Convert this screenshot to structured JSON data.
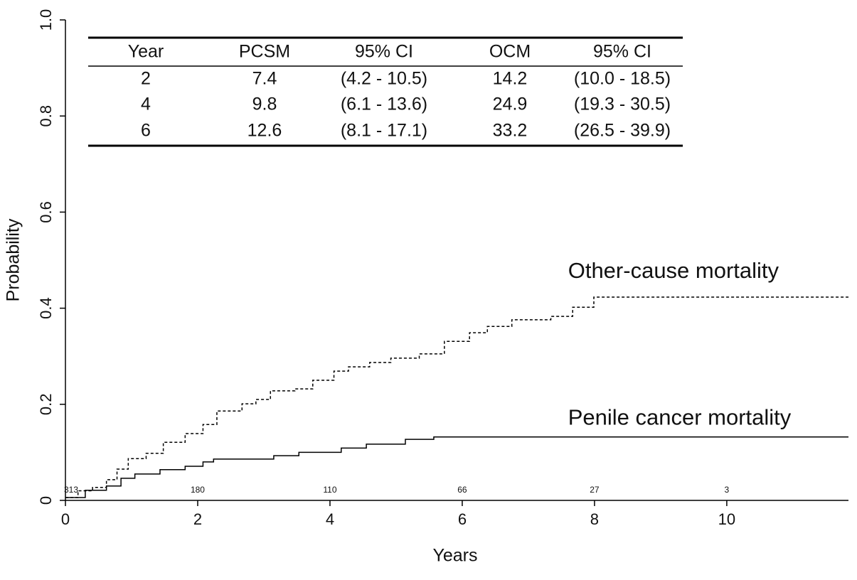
{
  "chart_data": {
    "type": "step",
    "xlabel": "Years",
    "ylabel": "Probability",
    "xlim": [
      0,
      11.84
    ],
    "ylim": [
      0,
      1
    ],
    "xticks": [
      0,
      2,
      4,
      6,
      8,
      10
    ],
    "yticks": [
      0,
      0.2,
      0.4,
      0.6,
      0.8,
      {
        "value": 1,
        "label": "1.0"
      }
    ],
    "series": [
      {
        "name": "Other-cause mortality",
        "color": "#000000",
        "line_style": "dashed",
        "x": [
          0.03,
          0.19,
          0.41,
          0.62,
          0.78,
          0.95,
          1.22,
          1.48,
          1.81,
          2.08,
          2.29,
          2.67,
          2.88,
          3.1,
          3.47,
          3.74,
          4.06,
          4.28,
          4.6,
          4.92,
          5.35,
          5.73,
          6.11,
          6.38,
          6.75,
          7.34,
          7.67,
          7.99,
          11.84
        ],
        "values": [
          0.006,
          0.02,
          0.027,
          0.043,
          0.065,
          0.087,
          0.098,
          0.121,
          0.139,
          0.158,
          0.186,
          0.201,
          0.21,
          0.228,
          0.232,
          0.25,
          0.269,
          0.278,
          0.287,
          0.296,
          0.305,
          0.331,
          0.349,
          0.362,
          0.376,
          0.383,
          0.402,
          0.423,
          0.423
        ]
      },
      {
        "name": "Penile cancer mortality",
        "color": "#000000",
        "line_style": "solid",
        "x": [
          0.03,
          0.3,
          0.62,
          0.84,
          1.05,
          1.43,
          1.81,
          2.08,
          2.24,
          3.15,
          3.53,
          4.17,
          4.55,
          5.14,
          5.57,
          11.84
        ],
        "values": [
          0.006,
          0.021,
          0.03,
          0.046,
          0.055,
          0.064,
          0.071,
          0.08,
          0.086,
          0.093,
          0.1,
          0.109,
          0.117,
          0.127,
          0.132,
          0.132
        ]
      }
    ],
    "label_positions": [
      [
        7.6,
        0.475
      ],
      [
        7.6,
        0.17
      ]
    ],
    "at_risk": {
      "x": [
        0,
        2,
        4,
        6,
        8,
        10
      ],
      "values": [
        313,
        180,
        110,
        66,
        27,
        3
      ]
    },
    "table": {
      "columns": [
        "Year",
        "PCSM",
        "95% CI",
        "OCM",
        "95% CI"
      ],
      "rows": [
        [
          "2",
          "7.4",
          "(4.2 - 10.5)",
          "14.2",
          "(10.0 - 18.5)"
        ],
        [
          "4",
          "9.8",
          "(6.1 - 13.6)",
          "24.9",
          "(19.3 - 30.5)"
        ],
        [
          "6",
          "12.6",
          "(8.1 - 17.1)",
          "33.2",
          "(26.5 - 39.9)"
        ]
      ]
    }
  }
}
